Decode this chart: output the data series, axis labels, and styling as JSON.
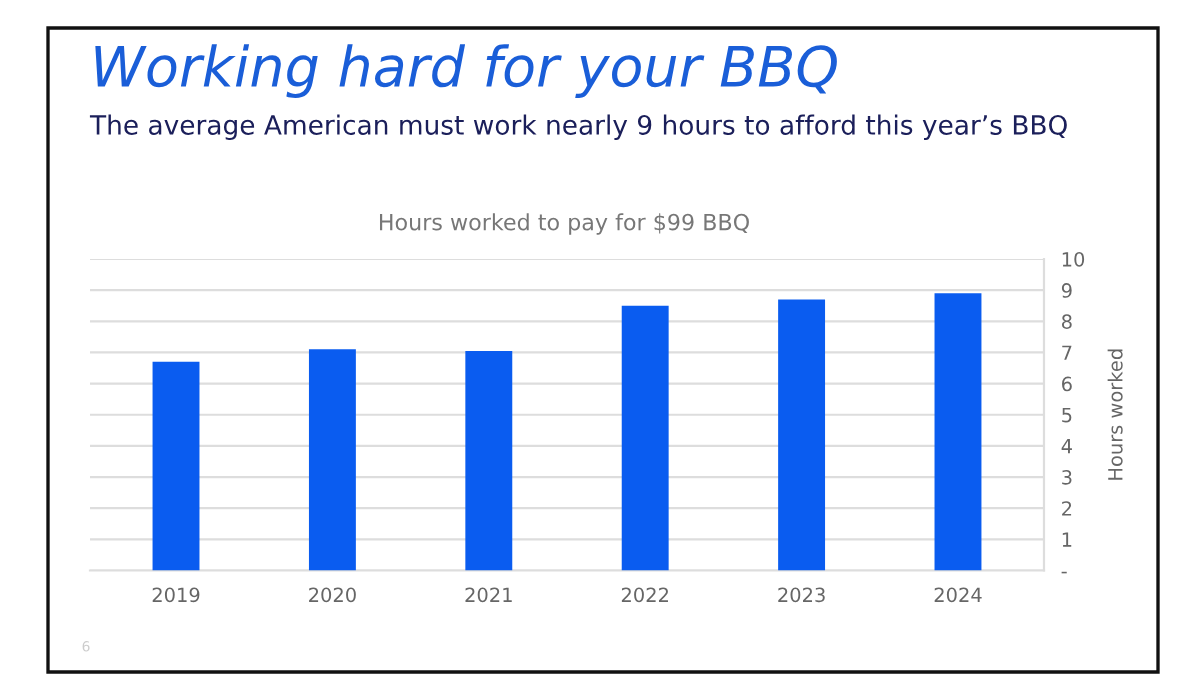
{
  "chart_data": {
    "type": "bar",
    "title": "Working hard for your BBQ",
    "subtitle": "The average American must work nearly 9 hours to afford this year’s BBQ",
    "annotations": [
      "Hours worked to pay for $99 BBQ",
      "6"
    ],
    "ylabel": "Hours worked",
    "categories": [
      "2019",
      "2020",
      "2021",
      "2022",
      "2023",
      "2024"
    ],
    "values": [
      6.7,
      7.1,
      7.05,
      8.5,
      8.7,
      8.9
    ],
    "color": "#0a5cf0",
    "ylim": [
      0,
      10
    ],
    "yticks": [
      {
        "value": 0,
        "label": "-"
      },
      1,
      2,
      3,
      4,
      5,
      6,
      7,
      8,
      9,
      10
    ],
    "grid": "y",
    "legend": false
  }
}
